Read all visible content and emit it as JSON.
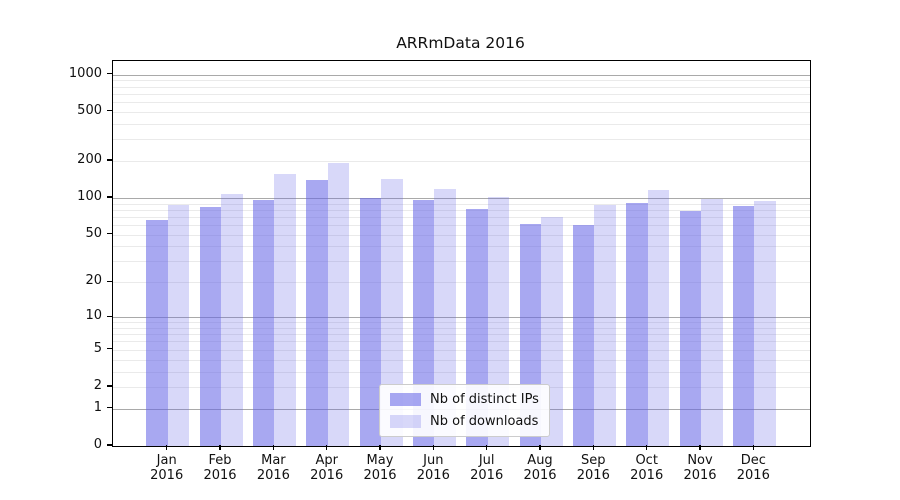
{
  "title": "ARRmData 2016",
  "legend": {
    "items": [
      {
        "name": "distinct-ips",
        "label": "Nb of distinct IPs",
        "color": "rgba(100,100,230,0.56)"
      },
      {
        "name": "downloads",
        "label": "Nb of downloads",
        "color": "rgba(100,100,230,0.25)"
      }
    ]
  },
  "chart_data": {
    "type": "bar",
    "title": "ARRmData 2016",
    "categories": [
      {
        "month": "Jan",
        "year": "2016"
      },
      {
        "month": "Feb",
        "year": "2016"
      },
      {
        "month": "Mar",
        "year": "2016"
      },
      {
        "month": "Apr",
        "year": "2016"
      },
      {
        "month": "May",
        "year": "2016"
      },
      {
        "month": "Jun",
        "year": "2016"
      },
      {
        "month": "Jul",
        "year": "2016"
      },
      {
        "month": "Aug",
        "year": "2016"
      },
      {
        "month": "Sep",
        "year": "2016"
      },
      {
        "month": "Oct",
        "year": "2016"
      },
      {
        "month": "Nov",
        "year": "2016"
      },
      {
        "month": "Dec",
        "year": "2016"
      }
    ],
    "series": [
      {
        "name": "Nb of distinct IPs",
        "color": "rgba(100,100,230,0.56)",
        "values": [
          66,
          85,
          96,
          140,
          100,
          97,
          82,
          61,
          60,
          91,
          79,
          86
        ]
      },
      {
        "name": "Nb of downloads",
        "color": "rgba(100,100,230,0.25)",
        "values": [
          88,
          107,
          157,
          191,
          142,
          119,
          102,
          70,
          87,
          116,
          98,
          95
        ]
      }
    ],
    "yscale": "log1p",
    "ylim": [
      0,
      1290
    ],
    "y_ticks": [
      0,
      1,
      2,
      5,
      10,
      20,
      50,
      100,
      200,
      500,
      1000
    ],
    "grid": true,
    "grid_major_color": "#a9a9a9",
    "grid_minor_color": "#eaeaea",
    "legend_position": "lower center",
    "xlabel": "",
    "ylabel": ""
  }
}
